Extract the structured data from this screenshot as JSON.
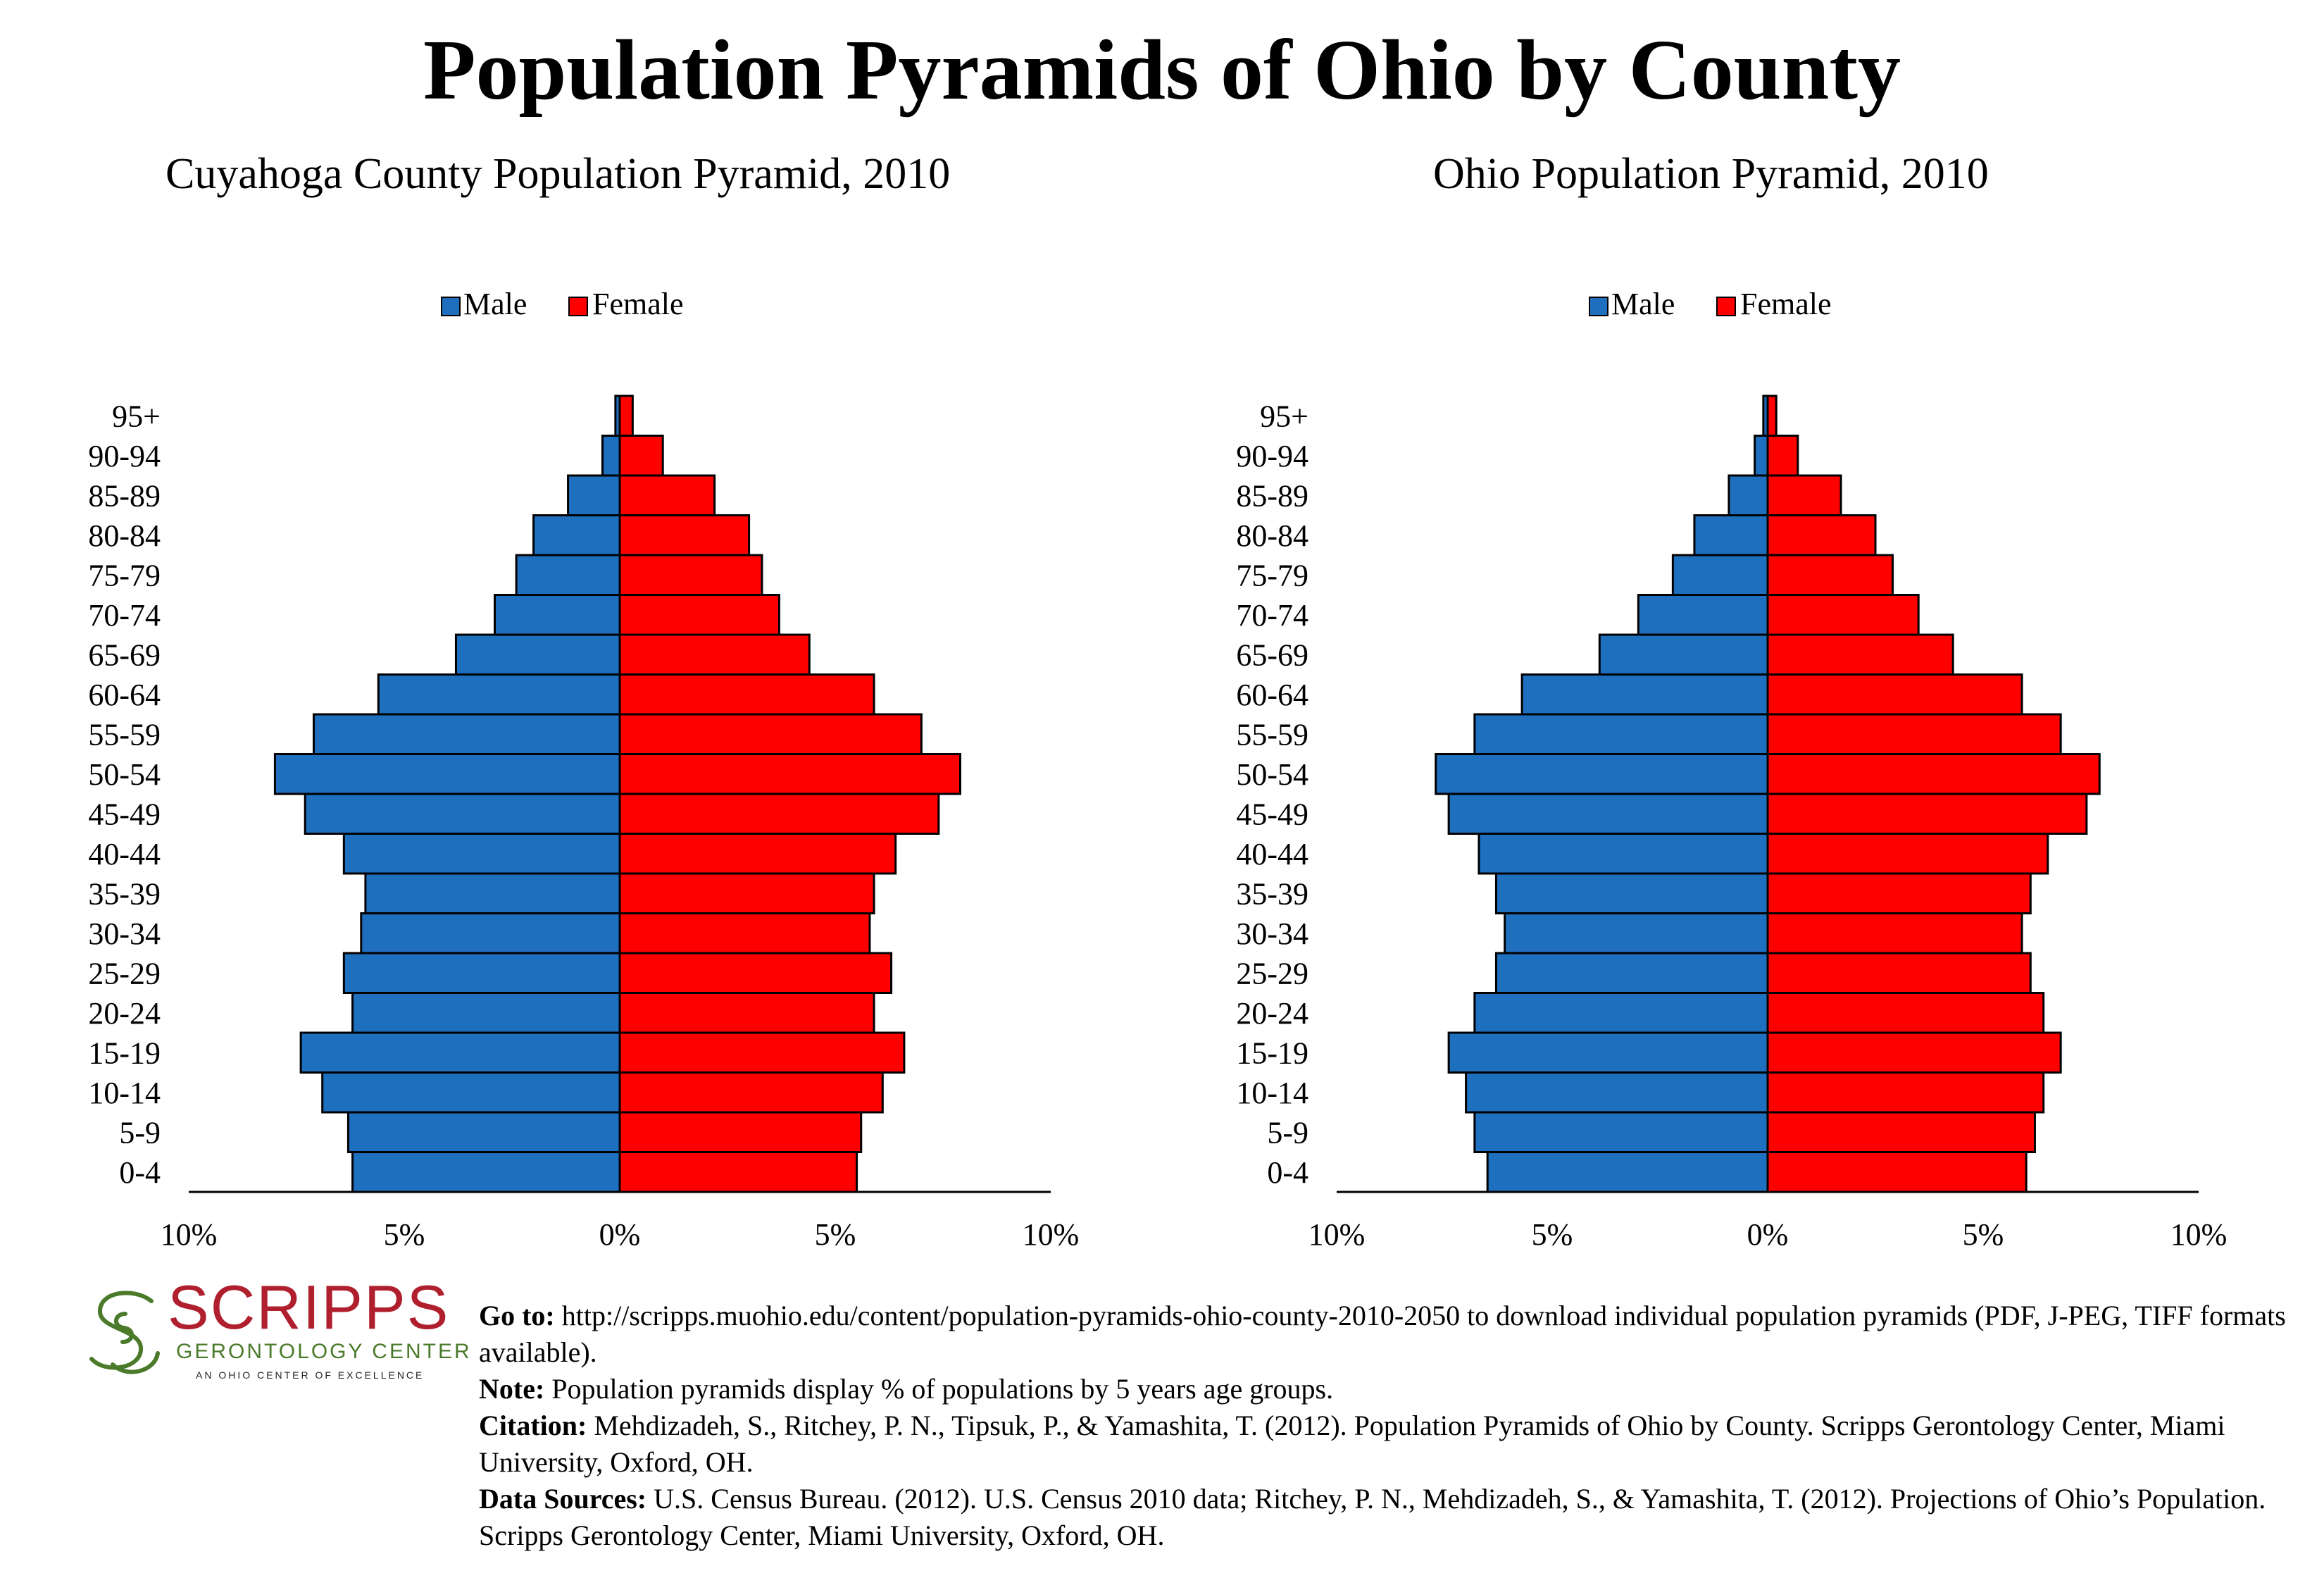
{
  "title": "Population Pyramids of Ohio by County",
  "legend": {
    "male_label": "Male",
    "female_label": "Female"
  },
  "colors": {
    "male": "#1f6fbf",
    "female": "#ff0000",
    "outline": "#000000"
  },
  "chart_data": [
    {
      "type": "bar",
      "title": "Cuyahoga County Population Pyramid, 2010",
      "orientation": "horizontal-pyramid",
      "categories": [
        "0-4",
        "5-9",
        "10-14",
        "15-19",
        "20-24",
        "25-29",
        "30-34",
        "35-39",
        "40-44",
        "45-49",
        "50-54",
        "55-59",
        "60-64",
        "65-69",
        "70-74",
        "75-79",
        "80-84",
        "85-89",
        "90-94",
        "95+"
      ],
      "series": [
        {
          "name": "Male",
          "values": [
            6.2,
            6.3,
            6.9,
            7.4,
            6.2,
            6.4,
            6.0,
            5.9,
            6.4,
            7.3,
            8.0,
            7.1,
            5.6,
            3.8,
            2.9,
            2.4,
            2.0,
            1.2,
            0.4,
            0.1
          ]
        },
        {
          "name": "Female",
          "values": [
            5.5,
            5.6,
            6.1,
            6.6,
            5.9,
            6.3,
            5.8,
            5.9,
            6.4,
            7.4,
            7.9,
            7.0,
            5.9,
            4.4,
            3.7,
            3.3,
            3.0,
            2.2,
            1.0,
            0.3
          ]
        }
      ],
      "xlim": [
        -10,
        10
      ],
      "xticks": [
        "10%",
        "5%",
        "0%",
        "5%",
        "10%"
      ],
      "legend": "top-center"
    },
    {
      "type": "bar",
      "title": "Ohio Population Pyramid, 2010",
      "orientation": "horizontal-pyramid",
      "categories": [
        "0-4",
        "5-9",
        "10-14",
        "15-19",
        "20-24",
        "25-29",
        "30-34",
        "35-39",
        "40-44",
        "45-49",
        "50-54",
        "55-59",
        "60-64",
        "65-69",
        "70-74",
        "75-79",
        "80-84",
        "85-89",
        "90-94",
        "95+"
      ],
      "series": [
        {
          "name": "Male",
          "values": [
            6.5,
            6.8,
            7.0,
            7.4,
            6.8,
            6.3,
            6.1,
            6.3,
            6.7,
            7.4,
            7.7,
            6.8,
            5.7,
            3.9,
            3.0,
            2.2,
            1.7,
            0.9,
            0.3,
            0.1
          ]
        },
        {
          "name": "Female",
          "values": [
            6.0,
            6.2,
            6.4,
            6.8,
            6.4,
            6.1,
            5.9,
            6.1,
            6.5,
            7.4,
            7.7,
            6.8,
            5.9,
            4.3,
            3.5,
            2.9,
            2.5,
            1.7,
            0.7,
            0.2
          ]
        }
      ],
      "xlim": [
        -10,
        10
      ],
      "xticks": [
        "10%",
        "5%",
        "0%",
        "5%",
        "10%"
      ],
      "legend": "top-center"
    }
  ],
  "logo": {
    "name": "SCRIPPS",
    "subtitle": "GERONTOLOGY CENTER",
    "tagline": "AN OHIO CENTER OF EXCELLENCE"
  },
  "notes": {
    "goto_label": "Go to:",
    "goto_text": " http://scripps.muohio.edu/content/population-pyramids-ohio-county-2010-2050 to download individual population pyramids (PDF, J-PEG, TIFF formats available).",
    "note_label": "Note:",
    "note_text": " Population pyramids display % of populations by 5 years age groups.",
    "citation_label": "Citation:",
    "citation_text": " Mehdizadeh, S., Ritchey, P. N., Tipsuk, P., & Yamashita, T. (2012). Population Pyramids of Ohio by County. Scripps Gerontology Center, Miami University, Oxford, OH.",
    "sources_label": "Data Sources:",
    "sources_text": " U.S. Census Bureau. (2012). U.S. Census 2010 data; Ritchey, P. N., Mehdizadeh, S., & Yamashita, T. (2012). Projections of Ohio’s Population. Scripps Gerontology Center, Miami University, Oxford, OH."
  }
}
